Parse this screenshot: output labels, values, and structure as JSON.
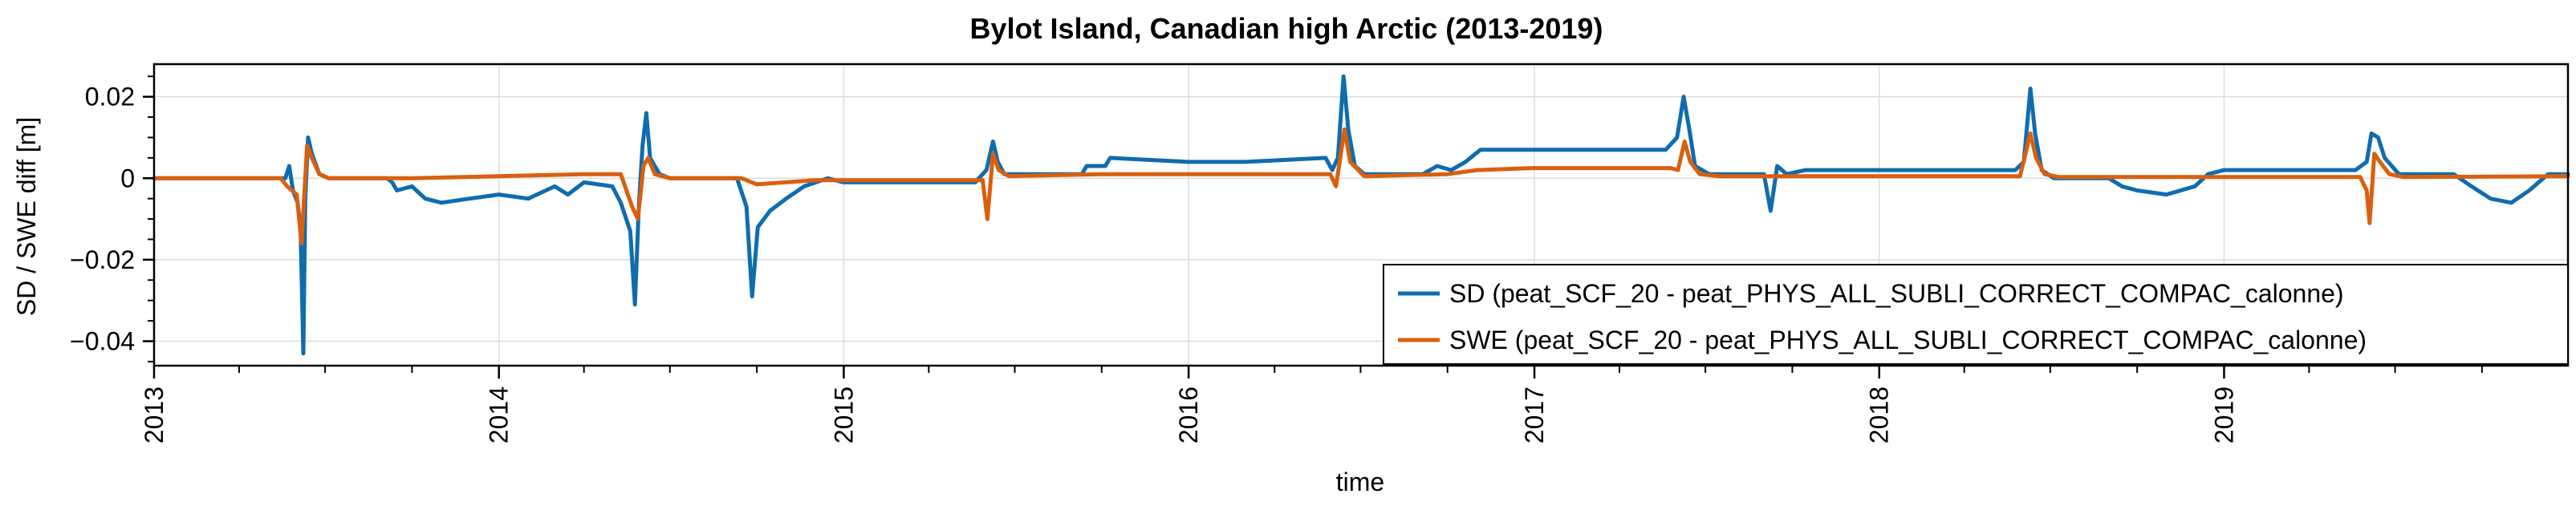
{
  "chart_data": {
    "type": "line",
    "title": "Bylot Island, Canadian high Arctic (2013-2019)",
    "xlabel": "time",
    "ylabel": "SD / SWE diff [m]",
    "x_range": [
      "2013-01-01",
      "2019-12-31"
    ],
    "ylim": [
      -0.046,
      0.028
    ],
    "x_ticks": [
      "2013",
      "2014",
      "2015",
      "2016",
      "2017",
      "2018",
      "2019"
    ],
    "y_ticks": [
      {
        "value": 0.02,
        "label": "0.02"
      },
      {
        "value": 0,
        "label": "0"
      },
      {
        "value": -0.02,
        "label": "−0.02"
      },
      {
        "value": -0.04,
        "label": "−0.04"
      }
    ],
    "grid": true,
    "legend_position": "lower-right",
    "series": [
      {
        "name": "SD (peat_SCF_20 - peat_PHYS_ALL_SUBLI_CORRECT_COMPAC_calonne)",
        "color": "#0f6cae",
        "points": [
          [
            "2013-01-01",
            0
          ],
          [
            "2013-05-20",
            0
          ],
          [
            "2013-05-24",
            0.003
          ],
          [
            "2013-05-28",
            -0.003
          ],
          [
            "2013-06-02",
            -0.006
          ],
          [
            "2013-06-05",
            -0.012
          ],
          [
            "2013-06-08",
            -0.043
          ],
          [
            "2013-06-10",
            -0.005
          ],
          [
            "2013-06-13",
            0.01
          ],
          [
            "2013-06-17",
            0.006
          ],
          [
            "2013-06-25",
            0.001
          ],
          [
            "2013-07-05",
            0
          ],
          [
            "2013-09-05",
            0
          ],
          [
            "2013-09-10",
            -0.001
          ],
          [
            "2013-09-15",
            -0.003
          ],
          [
            "2013-10-01",
            -0.002
          ],
          [
            "2013-10-15",
            -0.005
          ],
          [
            "2013-11-01",
            -0.006
          ],
          [
            "2013-12-01",
            -0.005
          ],
          [
            "2014-01-01",
            -0.004
          ],
          [
            "2014-02-01",
            -0.005
          ],
          [
            "2014-03-01",
            -0.002
          ],
          [
            "2014-03-15",
            -0.004
          ],
          [
            "2014-04-01",
            -0.001
          ],
          [
            "2014-05-01",
            -0.002
          ],
          [
            "2014-05-10",
            -0.006
          ],
          [
            "2014-05-20",
            -0.013
          ],
          [
            "2014-05-25",
            -0.031
          ],
          [
            "2014-05-29",
            -0.007
          ],
          [
            "2014-06-02",
            0.008
          ],
          [
            "2014-06-06",
            0.016
          ],
          [
            "2014-06-10",
            0.005
          ],
          [
            "2014-06-20",
            0.001
          ],
          [
            "2014-07-01",
            0
          ],
          [
            "2014-09-10",
            0
          ],
          [
            "2014-09-20",
            -0.007
          ],
          [
            "2014-09-26",
            -0.029
          ],
          [
            "2014-10-02",
            -0.012
          ],
          [
            "2014-10-15",
            -0.008
          ],
          [
            "2014-11-01",
            -0.005
          ],
          [
            "2014-11-20",
            -0.002
          ],
          [
            "2014-12-15",
            0
          ],
          [
            "2015-01-01",
            -0.001
          ],
          [
            "2015-03-01",
            -0.001
          ],
          [
            "2015-05-20",
            -0.001
          ],
          [
            "2015-06-01",
            0.002
          ],
          [
            "2015-06-08",
            0.009
          ],
          [
            "2015-06-13",
            0.004
          ],
          [
            "2015-06-20",
            0.001
          ],
          [
            "2015-09-10",
            0.001
          ],
          [
            "2015-09-15",
            0.003
          ],
          [
            "2015-10-05",
            0.003
          ],
          [
            "2015-10-10",
            0.005
          ],
          [
            "2016-01-01",
            0.004
          ],
          [
            "2016-03-01",
            0.004
          ],
          [
            "2016-05-25",
            0.005
          ],
          [
            "2016-06-01",
            0.002
          ],
          [
            "2016-06-07",
            0.005
          ],
          [
            "2016-06-13",
            0.025
          ],
          [
            "2016-06-18",
            0.012
          ],
          [
            "2016-06-25",
            0.003
          ],
          [
            "2016-07-05",
            0.001
          ],
          [
            "2016-09-05",
            0.001
          ],
          [
            "2016-09-20",
            0.003
          ],
          [
            "2016-10-05",
            0.002
          ],
          [
            "2016-10-20",
            0.004
          ],
          [
            "2016-11-05",
            0.007
          ],
          [
            "2017-01-01",
            0.007
          ],
          [
            "2017-03-01",
            0.007
          ],
          [
            "2017-05-20",
            0.007
          ],
          [
            "2017-06-01",
            0.01
          ],
          [
            "2017-06-08",
            0.02
          ],
          [
            "2017-06-14",
            0.012
          ],
          [
            "2017-06-20",
            0.003
          ],
          [
            "2017-07-05",
            0.001
          ],
          [
            "2017-09-01",
            0.001
          ],
          [
            "2017-09-08",
            -0.008
          ],
          [
            "2017-09-15",
            0.003
          ],
          [
            "2017-09-25",
            0.001
          ],
          [
            "2017-10-15",
            0.002
          ],
          [
            "2018-01-01",
            0.002
          ],
          [
            "2018-03-01",
            0.002
          ],
          [
            "2018-05-25",
            0.002
          ],
          [
            "2018-06-03",
            0.004
          ],
          [
            "2018-06-10",
            0.022
          ],
          [
            "2018-06-15",
            0.011
          ],
          [
            "2018-06-22",
            0.002
          ],
          [
            "2018-07-05",
            0
          ],
          [
            "2018-09-01",
            0
          ],
          [
            "2018-09-15",
            -0.002
          ],
          [
            "2018-10-01",
            -0.003
          ],
          [
            "2018-11-01",
            -0.004
          ],
          [
            "2018-12-01",
            -0.002
          ],
          [
            "2018-12-15",
            0.001
          ],
          [
            "2019-01-01",
            0.002
          ],
          [
            "2019-03-01",
            0.002
          ],
          [
            "2019-05-20",
            0.002
          ],
          [
            "2019-06-01",
            0.004
          ],
          [
            "2019-06-06",
            0.011
          ],
          [
            "2019-06-13",
            0.01
          ],
          [
            "2019-06-20",
            0.005
          ],
          [
            "2019-07-05",
            0.001
          ],
          [
            "2019-09-01",
            0.001
          ],
          [
            "2019-09-20",
            -0.002
          ],
          [
            "2019-10-10",
            -0.005
          ],
          [
            "2019-11-01",
            -0.006
          ],
          [
            "2019-11-20",
            -0.003
          ],
          [
            "2019-12-10",
            0.001
          ],
          [
            "2019-12-31",
            0.001
          ]
        ]
      },
      {
        "name": "SWE (peat_SCF_20 - peat_PHYS_ALL_SUBLI_CORRECT_COMPAC_calonne)",
        "color": "#d95f0e",
        "points": [
          [
            "2013-01-01",
            0
          ],
          [
            "2013-05-15",
            0
          ],
          [
            "2013-05-22",
            -0.002
          ],
          [
            "2013-06-01",
            -0.004
          ],
          [
            "2013-06-06",
            -0.016
          ],
          [
            "2013-06-09",
            -0.004
          ],
          [
            "2013-06-12",
            0.008
          ],
          [
            "2013-06-17",
            0.005
          ],
          [
            "2013-06-25",
            0.001
          ],
          [
            "2013-07-05",
            0
          ],
          [
            "2013-10-01",
            0
          ],
          [
            "2014-01-01",
            0.0005
          ],
          [
            "2014-04-01",
            0.001
          ],
          [
            "2014-05-10",
            0.001
          ],
          [
            "2014-05-22",
            -0.007
          ],
          [
            "2014-05-28",
            -0.01
          ],
          [
            "2014-06-03",
            0.003
          ],
          [
            "2014-06-08",
            0.005
          ],
          [
            "2014-06-15",
            0.001
          ],
          [
            "2014-07-01",
            0
          ],
          [
            "2014-09-15",
            0
          ],
          [
            "2014-10-01",
            -0.0015
          ],
          [
            "2014-12-01",
            -0.0005
          ],
          [
            "2015-01-01",
            -0.0005
          ],
          [
            "2015-05-28",
            -0.0005
          ],
          [
            "2015-06-02",
            -0.01
          ],
          [
            "2015-06-08",
            0.006
          ],
          [
            "2015-06-14",
            0.002
          ],
          [
            "2015-06-25",
            0.0005
          ],
          [
            "2015-10-01",
            0.001
          ],
          [
            "2016-01-01",
            0.001
          ],
          [
            "2016-05-30",
            0.001
          ],
          [
            "2016-06-05",
            -0.002
          ],
          [
            "2016-06-14",
            0.012
          ],
          [
            "2016-06-20",
            0.004
          ],
          [
            "2016-07-05",
            0.0005
          ],
          [
            "2016-10-01",
            0.001
          ],
          [
            "2016-11-01",
            0.002
          ],
          [
            "2017-01-01",
            0.0025
          ],
          [
            "2017-05-25",
            0.0025
          ],
          [
            "2017-06-02",
            0.002
          ],
          [
            "2017-06-09",
            0.009
          ],
          [
            "2017-06-15",
            0.004
          ],
          [
            "2017-06-25",
            0.001
          ],
          [
            "2017-07-15",
            0.0005
          ],
          [
            "2017-09-10",
            0.0005
          ],
          [
            "2018-01-01",
            0.0005
          ],
          [
            "2018-05-30",
            0.0005
          ],
          [
            "2018-06-10",
            0.011
          ],
          [
            "2018-06-16",
            0.005
          ],
          [
            "2018-06-25",
            0.001
          ],
          [
            "2018-07-10",
            0.0003
          ],
          [
            "2019-01-01",
            0.0003
          ],
          [
            "2019-05-25",
            0.0003
          ],
          [
            "2019-06-01",
            -0.003
          ],
          [
            "2019-06-04",
            -0.011
          ],
          [
            "2019-06-09",
            0.006
          ],
          [
            "2019-06-15",
            0.004
          ],
          [
            "2019-06-25",
            0.001
          ],
          [
            "2019-07-10",
            0.0003
          ],
          [
            "2019-12-31",
            0.0005
          ]
        ]
      }
    ]
  }
}
